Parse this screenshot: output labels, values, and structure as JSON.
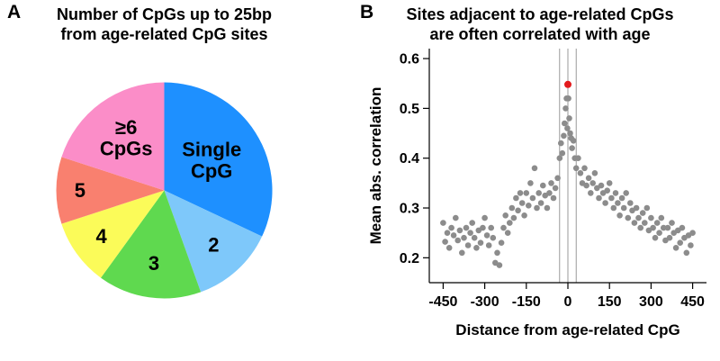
{
  "figure": {
    "panel_a": {
      "letter": "A",
      "title_line1": "Number of CpGs up to 25bp",
      "title_line2": "from age-related CpG sites"
    },
    "panel_b": {
      "letter": "B",
      "title_line1": "Sites adjacent to age-related CpGs",
      "title_line2": "are often correlated with age"
    }
  },
  "chart_data": [
    {
      "type": "pie",
      "panel": "A",
      "title": "Number of CpGs up to 25bp from age-related CpG sites",
      "slices": [
        {
          "id": "single-cpg",
          "label": "Single\nCpG",
          "value": 32,
          "color": "#1E90FF",
          "label_r": 0.52
        },
        {
          "id": "2",
          "label": "2",
          "value": 12.5,
          "color": "#7EC8FA",
          "label_r": 0.68
        },
        {
          "id": "3",
          "label": "3",
          "value": 15.5,
          "color": "#5FD94F",
          "label_r": 0.68
        },
        {
          "id": "4",
          "label": "4",
          "value": 10,
          "color": "#FBFB59",
          "label_r": 0.72
        },
        {
          "id": "5",
          "label": "5",
          "value": 10,
          "color": "#F9806F",
          "label_r": 0.78
        },
        {
          "id": "6plus",
          "label": "≥6\nCpGs",
          "value": 20,
          "color": "#FB8DC8",
          "label_r": 0.6
        }
      ]
    },
    {
      "type": "scatter",
      "panel": "B",
      "title": "Sites adjacent to age-related CpGs are often correlated with age",
      "xlabel": "Distance from age-related CpG",
      "ylabel": "Mean abs. correlation",
      "xlim": [
        -500,
        500
      ],
      "ylim": [
        0.15,
        0.62
      ],
      "xticks": [
        -450,
        -300,
        -150,
        0,
        150,
        300,
        450
      ],
      "yticks": [
        0.2,
        0.3,
        0.4,
        0.5,
        0.6
      ],
      "ref_lines_x": [
        -30,
        0,
        30
      ],
      "point_color": "#8c8c8c",
      "highlight_color": "#e31a1c",
      "highlight_point": [
        0,
        0.548
      ],
      "points": [
        [
          -450,
          0.27
        ],
        [
          -443,
          0.232
        ],
        [
          -435,
          0.25
        ],
        [
          -428,
          0.22
        ],
        [
          -420,
          0.26
        ],
        [
          -412,
          0.245
        ],
        [
          -405,
          0.28
        ],
        [
          -397,
          0.235
        ],
        [
          -390,
          0.255
        ],
        [
          -382,
          0.21
        ],
        [
          -375,
          0.24
        ],
        [
          -367,
          0.26
        ],
        [
          -360,
          0.225
        ],
        [
          -352,
          0.25
        ],
        [
          -345,
          0.27
        ],
        [
          -337,
          0.24
        ],
        [
          -330,
          0.22
        ],
        [
          -322,
          0.255
        ],
        [
          -315,
          0.23
        ],
        [
          -307,
          0.26
        ],
        [
          -300,
          0.28
        ],
        [
          -292,
          0.245
        ],
        [
          -285,
          0.225
        ],
        [
          -277,
          0.26
        ],
        [
          -270,
          0.24
        ],
        [
          -262,
          0.19
        ],
        [
          -255,
          0.21
        ],
        [
          -247,
          0.185
        ],
        [
          -240,
          0.23
        ],
        [
          -232,
          0.26
        ],
        [
          -225,
          0.285
        ],
        [
          -217,
          0.25
        ],
        [
          -210,
          0.27
        ],
        [
          -202,
          0.3
        ],
        [
          -195,
          0.28
        ],
        [
          -187,
          0.32
        ],
        [
          -180,
          0.295
        ],
        [
          -172,
          0.33
        ],
        [
          -165,
          0.31
        ],
        [
          -157,
          0.285
        ],
        [
          -150,
          0.33
        ],
        [
          -142,
          0.305
        ],
        [
          -135,
          0.35
        ],
        [
          -127,
          0.32
        ],
        [
          -120,
          0.38
        ],
        [
          -112,
          0.3
        ],
        [
          -105,
          0.33
        ],
        [
          -97,
          0.31
        ],
        [
          -90,
          0.345
        ],
        [
          -82,
          0.325
        ],
        [
          -75,
          0.3
        ],
        [
          -67,
          0.33
        ],
        [
          -60,
          0.35
        ],
        [
          -52,
          0.32
        ],
        [
          -45,
          0.34
        ],
        [
          -37,
          0.36
        ],
        [
          -30,
          0.4
        ],
        [
          -25,
          0.43
        ],
        [
          -20,
          0.41
        ],
        [
          -15,
          0.445
        ],
        [
          -12,
          0.47
        ],
        [
          -8,
          0.5
        ],
        [
          -5,
          0.52
        ],
        [
          -2,
          0.46
        ],
        [
          2,
          0.52
        ],
        [
          5,
          0.48
        ],
        [
          8,
          0.45
        ],
        [
          12,
          0.44
        ],
        [
          15,
          0.42
        ],
        [
          20,
          0.435
        ],
        [
          25,
          0.4
        ],
        [
          30,
          0.38
        ],
        [
          37,
          0.4
        ],
        [
          45,
          0.37
        ],
        [
          52,
          0.35
        ],
        [
          60,
          0.38
        ],
        [
          67,
          0.345
        ],
        [
          75,
          0.36
        ],
        [
          82,
          0.33
        ],
        [
          90,
          0.35
        ],
        [
          97,
          0.37
        ],
        [
          105,
          0.34
        ],
        [
          112,
          0.32
        ],
        [
          120,
          0.345
        ],
        [
          127,
          0.33
        ],
        [
          135,
          0.31
        ],
        [
          142,
          0.335
        ],
        [
          150,
          0.35
        ],
        [
          157,
          0.32
        ],
        [
          165,
          0.3
        ],
        [
          172,
          0.33
        ],
        [
          180,
          0.31
        ],
        [
          187,
          0.285
        ],
        [
          195,
          0.32
        ],
        [
          202,
          0.3
        ],
        [
          210,
          0.33
        ],
        [
          217,
          0.28
        ],
        [
          225,
          0.31
        ],
        [
          232,
          0.295
        ],
        [
          240,
          0.27
        ],
        [
          247,
          0.3
        ],
        [
          255,
          0.28
        ],
        [
          262,
          0.26
        ],
        [
          270,
          0.29
        ],
        [
          277,
          0.27
        ],
        [
          285,
          0.3
        ],
        [
          292,
          0.255
        ],
        [
          300,
          0.28
        ],
        [
          307,
          0.26
        ],
        [
          315,
          0.24
        ],
        [
          322,
          0.27
        ],
        [
          330,
          0.25
        ],
        [
          337,
          0.28
        ],
        [
          345,
          0.26
        ],
        [
          352,
          0.235
        ],
        [
          360,
          0.26
        ],
        [
          367,
          0.24
        ],
        [
          375,
          0.27
        ],
        [
          382,
          0.25
        ],
        [
          390,
          0.22
        ],
        [
          397,
          0.255
        ],
        [
          405,
          0.23
        ],
        [
          412,
          0.26
        ],
        [
          420,
          0.24
        ],
        [
          428,
          0.21
        ],
        [
          435,
          0.245
        ],
        [
          443,
          0.225
        ],
        [
          450,
          0.25
        ]
      ]
    }
  ]
}
